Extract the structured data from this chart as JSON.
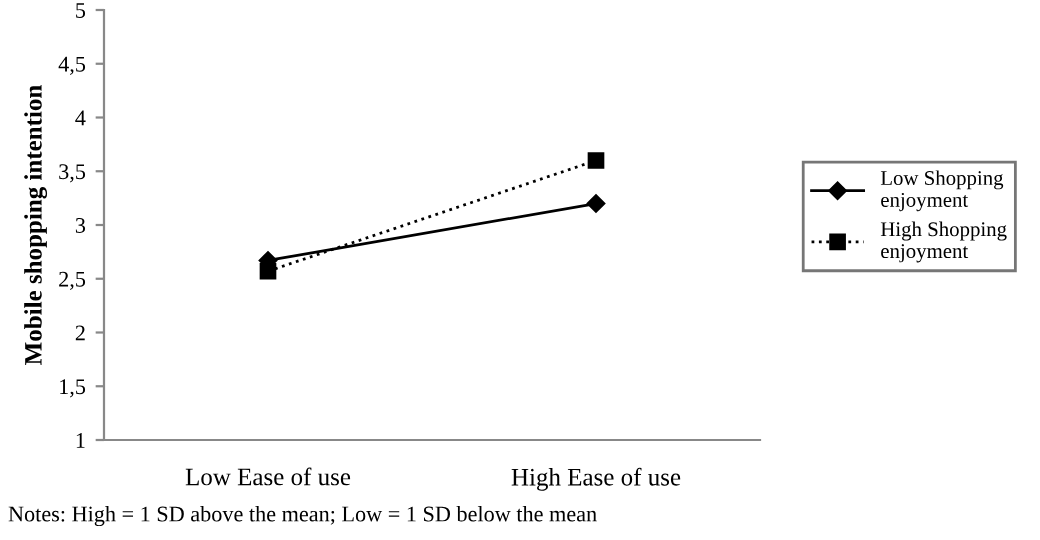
{
  "chart_data": {
    "type": "line",
    "ylabel": "Mobile shopping intention",
    "categories": [
      "Low Ease of use",
      "High Ease of use"
    ],
    "series": [
      {
        "name": "Low Shopping enjoyment",
        "color": "#000000",
        "values": [
          2.67,
          3.2
        ],
        "marker": "diamond",
        "line_style": "solid"
      },
      {
        "name": "High Shopping enjoyment",
        "color": "#000000",
        "values": [
          2.57,
          3.6
        ],
        "marker": "square",
        "line_style": "dotted"
      }
    ],
    "ylim": [
      1,
      5
    ],
    "yticks": [
      1,
      {
        "value": 1.5,
        "label": "1,5"
      },
      2,
      {
        "value": 2.5,
        "label": "2,5"
      },
      3,
      {
        "value": 3.5,
        "label": "3,5"
      },
      4,
      {
        "value": 4.5,
        "label": "4,5"
      },
      5
    ],
    "grid": false,
    "legend": "right",
    "annotations": [
      "Notes: High = 1 SD above the mean; Low = 1 SD below the mean"
    ]
  }
}
